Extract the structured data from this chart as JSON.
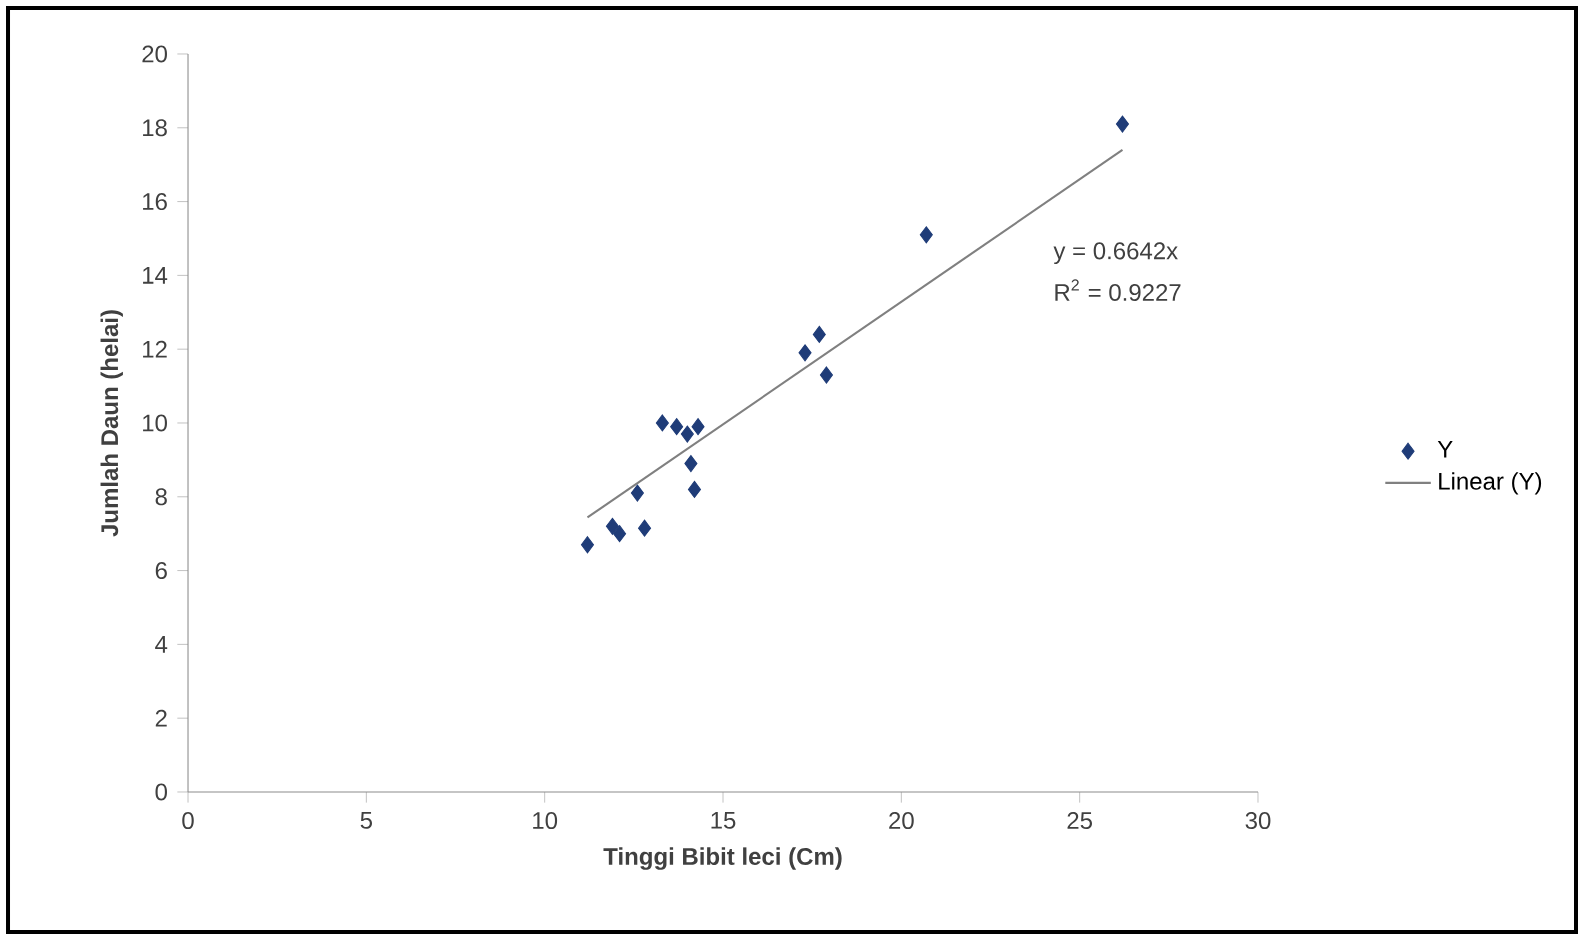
{
  "chart_data": {
    "type": "scatter",
    "xlabel": "Tinggi  Bibit leci (Cm)",
    "ylabel": "Jumlah Daun (helai)",
    "xlim": [
      0,
      30
    ],
    "xticks": [
      0,
      5,
      10,
      15,
      20,
      25,
      30
    ],
    "ylim": [
      0,
      20
    ],
    "yticks": [
      0,
      2,
      4,
      6,
      8,
      10,
      12,
      14,
      16,
      18,
      20
    ],
    "grid": false,
    "legend": "right",
    "marker": "diamond",
    "annotations": [
      "y = 0.6642x",
      "R$^{2}$ = 0.9227"
    ],
    "series": [
      {
        "name": "Y",
        "color": "#1f3c78",
        "x": [
          11.2,
          11.9,
          12.1,
          12.8,
          12.6,
          14.2,
          14.1,
          13.3,
          13.7,
          14.3,
          14.0,
          17.3,
          17.7,
          17.9,
          20.7,
          26.2
        ],
        "values": [
          6.7,
          7.2,
          7.0,
          7.15,
          8.1,
          8.2,
          8.9,
          10.0,
          9.9,
          9.9,
          9.7,
          11.9,
          12.4,
          11.3,
          15.1,
          18.1
        ]
      },
      {
        "name": "Linear (Y)",
        "type": "line",
        "color": "#808080",
        "marker": "none",
        "x": [
          11.2,
          26.2
        ],
        "values": [
          7.44,
          17.4
        ]
      }
    ]
  }
}
